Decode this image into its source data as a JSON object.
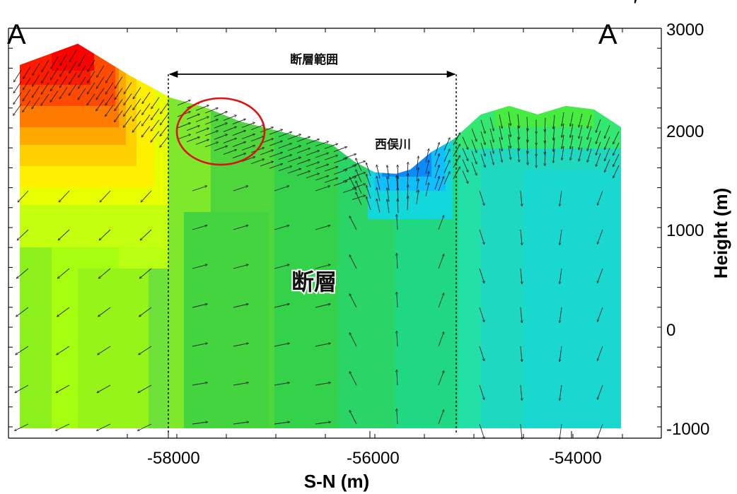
{
  "corner_labels": {
    "left": "A",
    "right": "A",
    "prime": "′"
  },
  "annotations": {
    "fault_range": "断層範囲",
    "river": "西俣川",
    "fault": "断層"
  },
  "chart_data": {
    "type": "vector-field cross-section",
    "xlabel": "S-N (m)",
    "ylabel": "Height (m)",
    "x_ticks": [
      "-58000",
      "-56000",
      "-54000"
    ],
    "y_ticks": [
      "3000",
      "2000",
      "1000",
      "0",
      "-1000"
    ],
    "xlim": [
      -59500,
      -52500
    ],
    "ylim": [
      -1100,
      3050
    ],
    "fault_range_x": [
      -57950,
      -55050
    ],
    "highlight_circle_center": [
      -57300,
      1950
    ],
    "colormap": [
      "#ff0000",
      "#ffa000",
      "#ffff00",
      "#a0ff00",
      "#00e000",
      "#00e0a0",
      "#00c8ff",
      "#0050ff"
    ]
  }
}
